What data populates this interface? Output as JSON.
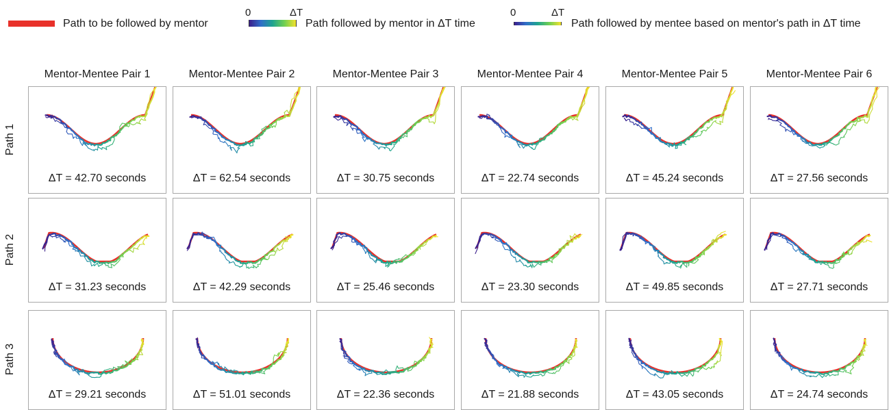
{
  "legend": {
    "mentor_path_label": "Path to be followed by mentor",
    "mentor_gradient_label": "Path followed by mentor in ΔT time",
    "mentee_gradient_label": "Path followed by mentee based on mentor's path in ΔT time",
    "tick_start": "0",
    "tick_end": "ΔT",
    "colors": {
      "target_path": "#e8312a",
      "gradient": [
        "#3b1f8c",
        "#2f6fc9",
        "#1fa48f",
        "#6fcf52",
        "#f2e22c"
      ]
    }
  },
  "columns": [
    "Mentor-Mentee Pair 1",
    "Mentor-Mentee Pair 2",
    "Mentor-Mentee Pair 3",
    "Mentor-Mentee Pair 4",
    "Mentor-Mentee Pair 5",
    "Mentor-Mentee Pair 6"
  ],
  "rows": [
    {
      "label": "Path 1",
      "shape": "wave-up",
      "times": [
        "ΔT = 42.70 seconds",
        "ΔT = 62.54 seconds",
        "ΔT = 30.75 seconds",
        "ΔT = 22.74 seconds",
        "ΔT = 45.24 seconds",
        "ΔT = 27.56 seconds"
      ]
    },
    {
      "label": "Path 2",
      "shape": "wave-double",
      "times": [
        "ΔT = 31.23 seconds",
        "ΔT = 42.29 seconds",
        "ΔT = 25.46 seconds",
        "ΔT = 23.30 seconds",
        "ΔT = 49.85 seconds",
        "ΔT = 27.71 seconds"
      ]
    },
    {
      "label": "Path 3",
      "shape": "u-curve",
      "times": [
        "ΔT = 29.21 seconds",
        "ΔT = 51.01 seconds",
        "ΔT = 22.36 seconds",
        "ΔT = 21.88 seconds",
        "ΔT = 43.05 seconds",
        "ΔT = 24.74 seconds"
      ]
    }
  ]
}
